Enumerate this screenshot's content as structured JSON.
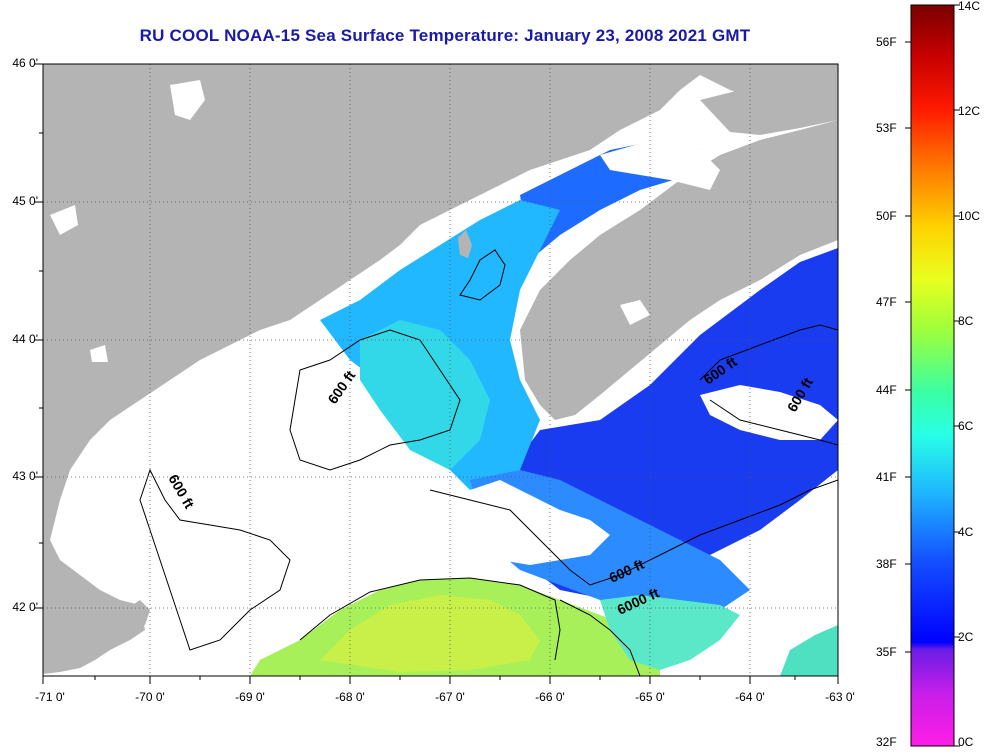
{
  "title": "RU COOL  NOAA-15  Sea Surface Temperature:  January 23, 2008 2021 GMT",
  "map": {
    "lon_range": [
      -71,
      -63
    ],
    "lat_range": [
      41.5,
      46
    ],
    "lat_ticks": [
      {
        "label": "46 0'"
      },
      {
        "label": "45 0'"
      },
      {
        "label": "44 0'"
      },
      {
        "label": "43 0'"
      },
      {
        "label": "42 0'"
      }
    ],
    "lon_ticks": [
      {
        "label": "-71 0'"
      },
      {
        "label": "-70 0'"
      },
      {
        "label": "-69 0'"
      },
      {
        "label": "-68 0'"
      },
      {
        "label": "-67 0'"
      },
      {
        "label": "-66 0'"
      },
      {
        "label": "-65 0'"
      },
      {
        "label": "-64 0'"
      },
      {
        "label": "-63 0'"
      }
    ],
    "land_color": "#b4b4b4",
    "nodata_color": "#ffffff",
    "contour_labels": [
      {
        "text": "600 ft"
      },
      {
        "text": "600 ft"
      },
      {
        "text": "600 ft"
      },
      {
        "text": "600 ft"
      },
      {
        "text": "6000 ft"
      },
      {
        "text": "600 ft"
      }
    ]
  },
  "colorbar": {
    "fahrenheit_labels": [
      {
        "label": "56F"
      },
      {
        "label": "53F"
      },
      {
        "label": "50F"
      },
      {
        "label": "47F"
      },
      {
        "label": "44F"
      },
      {
        "label": "41F"
      },
      {
        "label": "38F"
      },
      {
        "label": "35F"
      },
      {
        "label": "32F"
      }
    ],
    "celsius_labels": [
      {
        "label": "14C"
      },
      {
        "label": "12C"
      },
      {
        "label": "10C"
      },
      {
        "label": "8C"
      },
      {
        "label": "6C"
      },
      {
        "label": "4C"
      },
      {
        "label": "2C"
      },
      {
        "label": "0C"
      }
    ],
    "colors": [
      "#8b0000",
      "#e00000",
      "#ff7f00",
      "#ffe600",
      "#b4ff2a",
      "#2affd0",
      "#1e8cff",
      "#0000ff",
      "#7f00ff",
      "#ff00ff"
    ]
  }
}
